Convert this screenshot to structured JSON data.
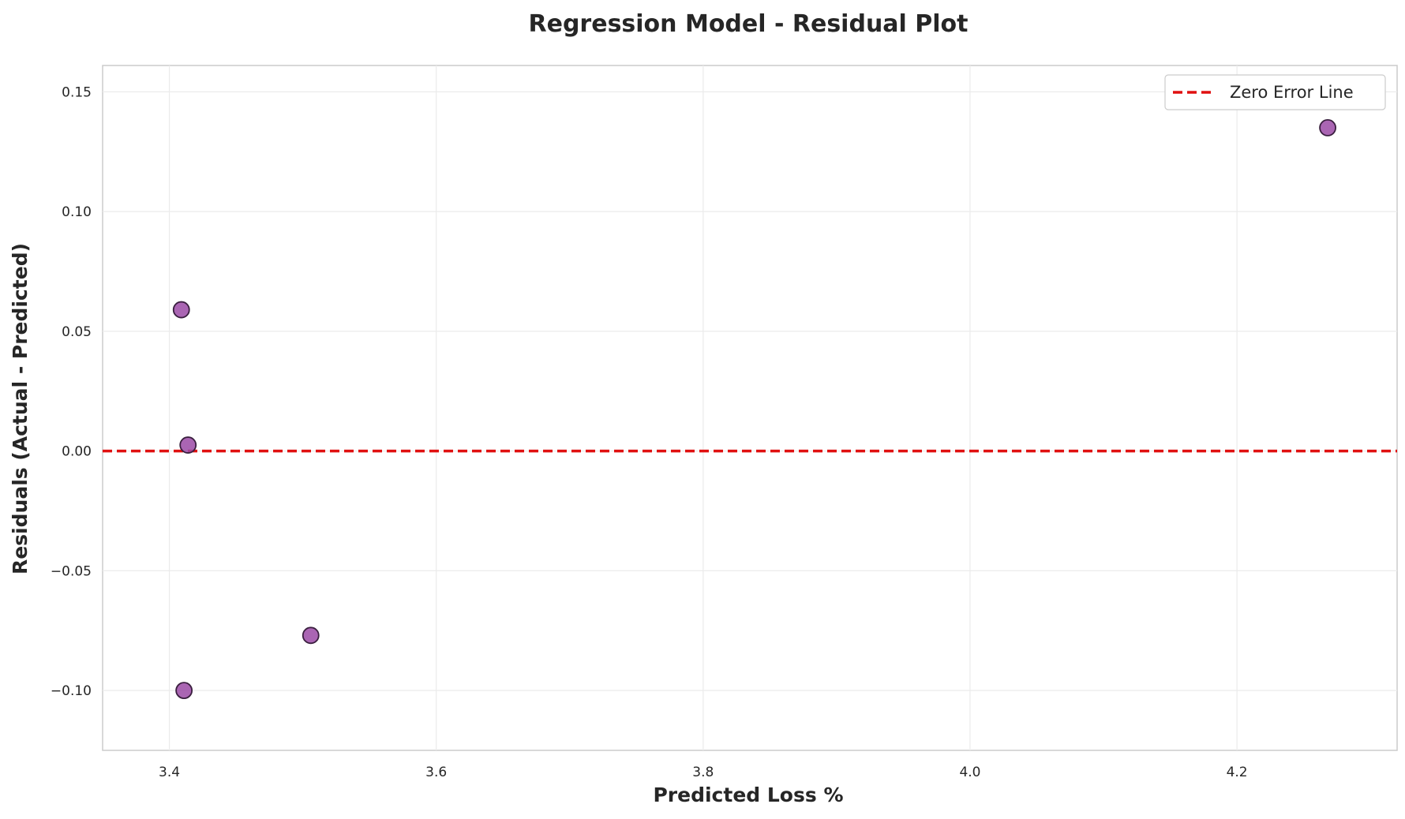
{
  "chart_data": {
    "type": "scatter",
    "title": "Regression Model - Residual Plot",
    "xlabel": "Predicted Loss %",
    "ylabel": "Residuals (Actual - Predicted)",
    "xlim": [
      3.35,
      4.32
    ],
    "ylim": [
      -0.125,
      0.161
    ],
    "xticks": [
      3.4,
      3.6,
      3.8,
      4.0,
      4.2
    ],
    "xtick_labels": [
      "3.4",
      "3.6",
      "3.8",
      "4.0",
      "4.2"
    ],
    "yticks": [
      -0.1,
      -0.05,
      0.0,
      0.05,
      0.1,
      0.15
    ],
    "ytick_labels": [
      "−0.10",
      "−0.05",
      "0.00",
      "0.05",
      "0.10",
      "0.15"
    ],
    "grid": true,
    "legend_position": "top-right",
    "series": [
      {
        "type": "scatter",
        "color": "#9b4aa6",
        "edge_color": "#3a1f3f",
        "points": [
          {
            "x": 3.409,
            "y": 0.059
          },
          {
            "x": 3.414,
            "y": 0.0025
          },
          {
            "x": 3.411,
            "y": -0.1
          },
          {
            "x": 3.506,
            "y": -0.077
          },
          {
            "x": 4.268,
            "y": 0.135
          }
        ]
      }
    ],
    "reference_lines": [
      {
        "name": "Zero Error Line",
        "y": 0.0,
        "color": "#e01010",
        "style": "dashed"
      }
    ]
  }
}
